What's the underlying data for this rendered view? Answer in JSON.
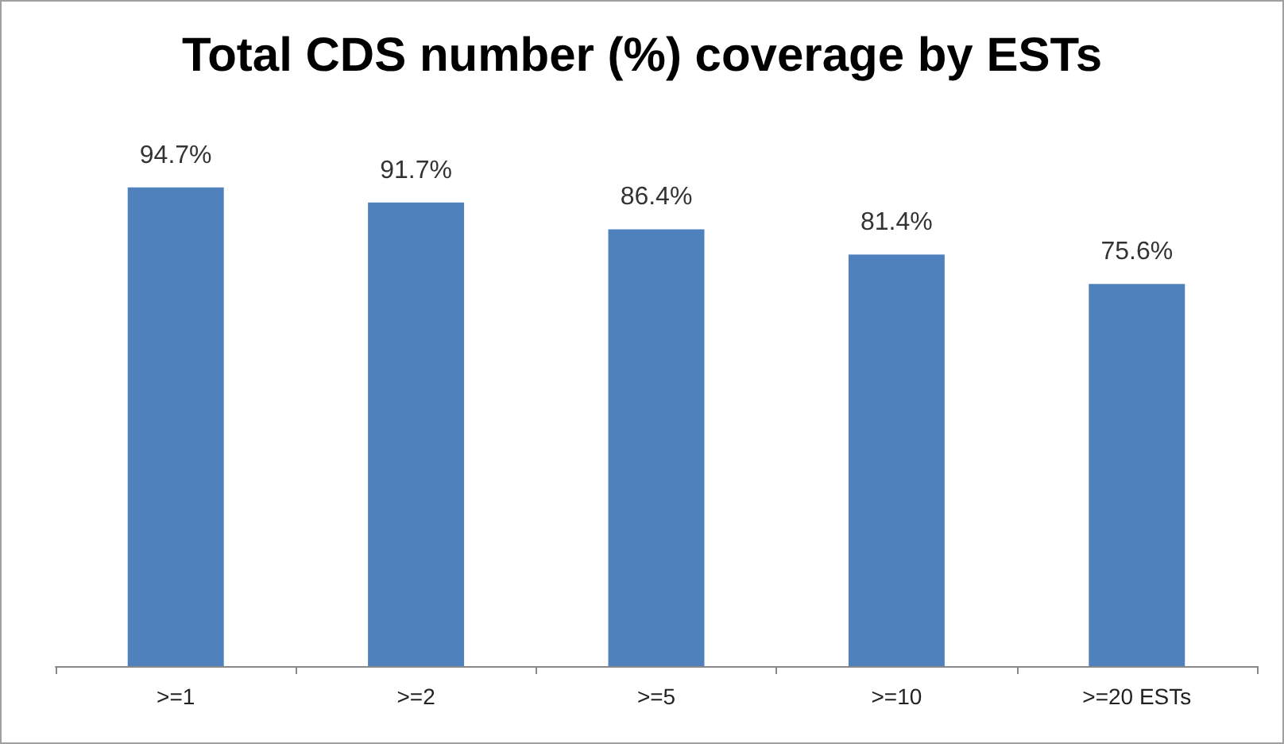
{
  "chart_data": {
    "type": "bar",
    "title": "Total CDS number (%) coverage by ESTs",
    "categories": [
      ">=1",
      ">=2",
      ">=5",
      ">=10",
      ">=20 ESTs"
    ],
    "values": [
      94.7,
      91.7,
      86.4,
      81.4,
      75.6
    ],
    "value_labels": [
      "94.7%",
      "91.7%",
      "86.4%",
      "81.4%",
      "75.6%"
    ],
    "color": "#4f81bd",
    "tick_labels": "x"
  }
}
